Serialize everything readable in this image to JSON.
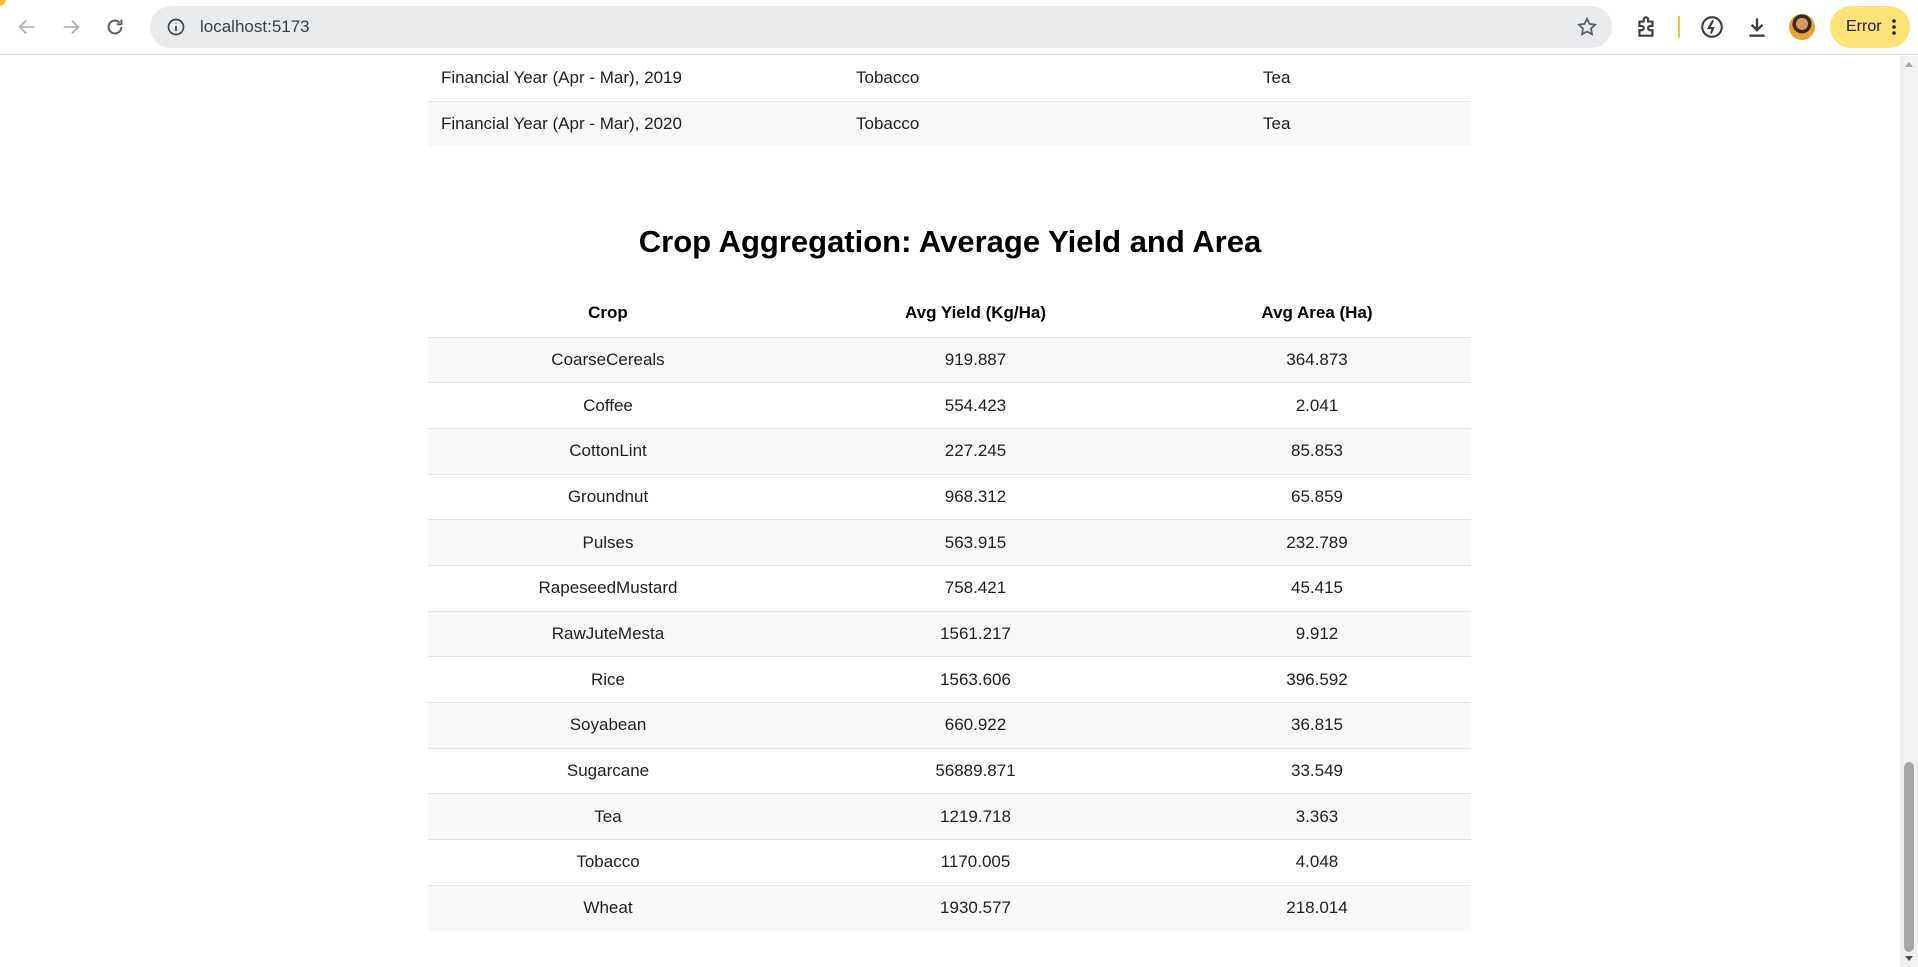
{
  "browser": {
    "url": "localhost:5173",
    "profile_button_label": "Error",
    "icons": {
      "back": "arrow-left-icon",
      "forward": "arrow-right-icon",
      "reload": "reload-icon",
      "site_info": "info-icon",
      "bookmark": "star-icon",
      "extensions": "puzzle-icon",
      "performance": "speedometer-icon",
      "downloads": "download-icon",
      "menu": "kebab-menu-icon"
    }
  },
  "prev_table": {
    "rows": [
      [
        "Financial Year (Apr - Mar), 2019",
        "Tobacco",
        "Tea"
      ],
      [
        "Financial Year (Apr - Mar), 2020",
        "Tobacco",
        "Tea"
      ]
    ]
  },
  "aggregation": {
    "title": "Crop Aggregation: Average Yield and Area",
    "headers": [
      "Crop",
      "Avg Yield (Kg/Ha)",
      "Avg Area (Ha)"
    ],
    "rows": [
      [
        "CoarseCereals",
        "919.887",
        "364.873"
      ],
      [
        "Coffee",
        "554.423",
        "2.041"
      ],
      [
        "CottonLint",
        "227.245",
        "85.853"
      ],
      [
        "Groundnut",
        "968.312",
        "65.859"
      ],
      [
        "Pulses",
        "563.915",
        "232.789"
      ],
      [
        "RapeseedMustard",
        "758.421",
        "45.415"
      ],
      [
        "RawJuteMesta",
        "1561.217",
        "9.912"
      ],
      [
        "Rice",
        "1563.606",
        "396.592"
      ],
      [
        "Soyabean",
        "660.922",
        "36.815"
      ],
      [
        "Sugarcane",
        "56889.871",
        "33.549"
      ],
      [
        "Tea",
        "1219.718",
        "3.363"
      ],
      [
        "Tobacco",
        "1170.005",
        "4.048"
      ],
      [
        "Wheat",
        "1930.577",
        "218.014"
      ]
    ]
  }
}
